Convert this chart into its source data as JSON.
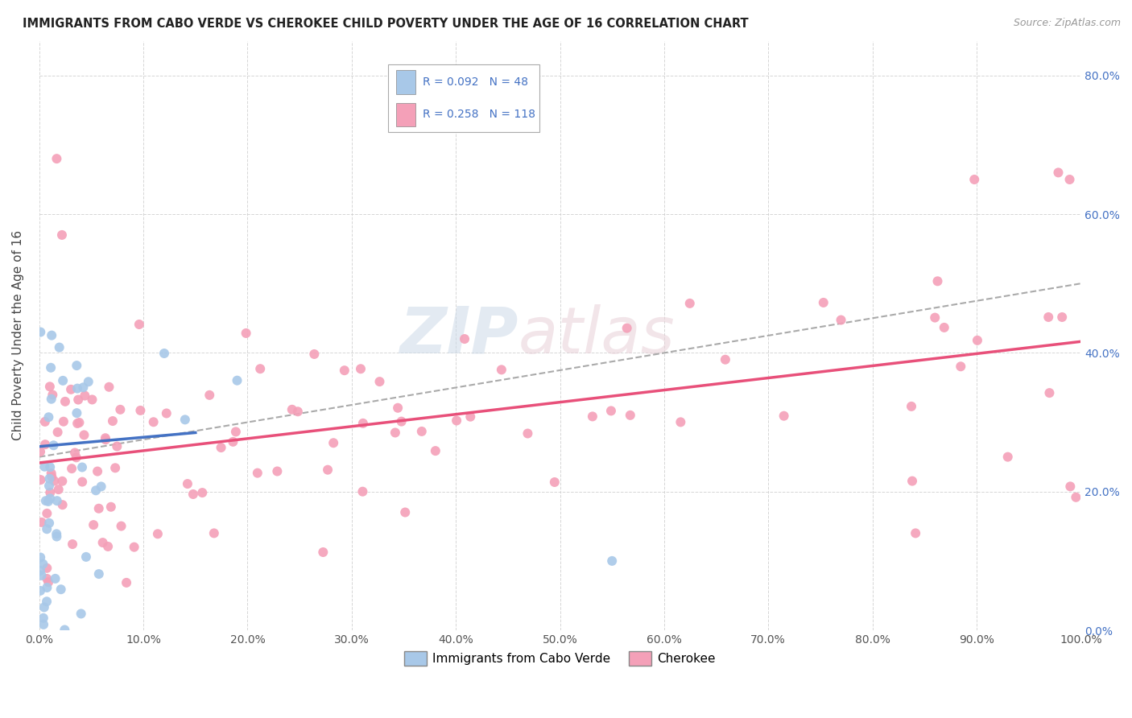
{
  "title": "IMMIGRANTS FROM CABO VERDE VS CHEROKEE CHILD POVERTY UNDER THE AGE OF 16 CORRELATION CHART",
  "source": "Source: ZipAtlas.com",
  "ylabel": "Child Poverty Under the Age of 16",
  "xlim": [
    0.0,
    1.0
  ],
  "ylim": [
    0.0,
    0.85
  ],
  "xticks": [
    0.0,
    0.1,
    0.2,
    0.3,
    0.4,
    0.5,
    0.6,
    0.7,
    0.8,
    0.9,
    1.0
  ],
  "xticklabels": [
    "0.0%",
    "10.0%",
    "20.0%",
    "30.0%",
    "40.0%",
    "50.0%",
    "60.0%",
    "70.0%",
    "80.0%",
    "90.0%",
    "100.0%"
  ],
  "yticks": [
    0.0,
    0.2,
    0.4,
    0.6,
    0.8
  ],
  "yticklabels": [
    "0.0%",
    "20.0%",
    "40.0%",
    "60.0%",
    "80.0%"
  ],
  "cabo_verde_color": "#a8c8e8",
  "cherokee_color": "#f4a0b8",
  "cabo_verde_line_color": "#4472c4",
  "cherokee_line_color": "#e8507a",
  "gray_dash_color": "#aaaaaa",
  "cabo_verde_R": 0.092,
  "cabo_verde_N": 48,
  "cherokee_R": 0.258,
  "cherokee_N": 118,
  "background_color": "#ffffff",
  "grid_color": "#cccccc",
  "right_axis_color": "#4472c4",
  "tick_label_color": "#555555",
  "title_color": "#222222",
  "source_color": "#999999"
}
